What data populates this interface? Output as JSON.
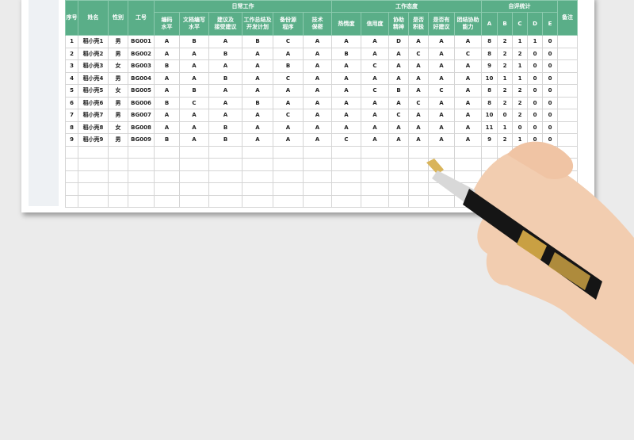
{
  "table": {
    "headers": {
      "index": "序号",
      "name": "姓名",
      "gender": "性别",
      "id": "工号",
      "group_daily": "日常工作",
      "group_attitude": "工作态度",
      "group_self": "自评统计",
      "remark": "备注",
      "daily": [
        "编码\n水平",
        "文档编写\n水平",
        "建议及\n接受建议",
        "工作总结及\n开发计划",
        "备份源\n程序",
        "技术\n保密"
      ],
      "attitude": [
        "热情度",
        "信用度",
        "协助\n精神",
        "是否\n积极",
        "是否有\n好建议",
        "团结协助\n能力"
      ],
      "self": [
        "A",
        "B",
        "C",
        "D",
        "E"
      ]
    },
    "rows": [
      [
        "1",
        "稻小壳1",
        "男",
        "BG001",
        "A",
        "B",
        "A",
        "B",
        "C",
        "A",
        "A",
        "A",
        "D",
        "A",
        "A",
        "A",
        "8",
        "2",
        "1",
        "1",
        "0",
        ""
      ],
      [
        "2",
        "稻小壳2",
        "男",
        "BG002",
        "A",
        "A",
        "B",
        "A",
        "A",
        "A",
        "B",
        "A",
        "A",
        "C",
        "A",
        "C",
        "8",
        "2",
        "2",
        "0",
        "0",
        ""
      ],
      [
        "3",
        "稻小壳3",
        "女",
        "BG003",
        "B",
        "A",
        "A",
        "A",
        "B",
        "A",
        "A",
        "C",
        "A",
        "A",
        "A",
        "A",
        "9",
        "2",
        "1",
        "0",
        "0",
        ""
      ],
      [
        "4",
        "稻小壳4",
        "男",
        "BG004",
        "A",
        "A",
        "B",
        "A",
        "C",
        "A",
        "A",
        "A",
        "A",
        "A",
        "A",
        "A",
        "10",
        "1",
        "1",
        "0",
        "0",
        ""
      ],
      [
        "5",
        "稻小壳5",
        "女",
        "BG005",
        "A",
        "B",
        "A",
        "A",
        "A",
        "A",
        "A",
        "C",
        "B",
        "A",
        "C",
        "A",
        "8",
        "2",
        "2",
        "0",
        "0",
        ""
      ],
      [
        "6",
        "稻小壳6",
        "男",
        "BG006",
        "B",
        "C",
        "A",
        "B",
        "A",
        "A",
        "A",
        "A",
        "A",
        "C",
        "A",
        "A",
        "8",
        "2",
        "2",
        "0",
        "0",
        ""
      ],
      [
        "7",
        "稻小壳7",
        "男",
        "BG007",
        "A",
        "A",
        "A",
        "A",
        "C",
        "A",
        "A",
        "A",
        "C",
        "A",
        "A",
        "A",
        "10",
        "0",
        "2",
        "0",
        "0",
        ""
      ],
      [
        "8",
        "稻小壳8",
        "女",
        "BG008",
        "A",
        "A",
        "B",
        "A",
        "A",
        "A",
        "A",
        "A",
        "A",
        "A",
        "A",
        "A",
        "11",
        "1",
        "0",
        "0",
        "0",
        ""
      ],
      [
        "9",
        "稻小壳9",
        "男",
        "BG009",
        "B",
        "A",
        "B",
        "A",
        "A",
        "A",
        "C",
        "A",
        "A",
        "A",
        "A",
        "A",
        "9",
        "2",
        "1",
        "0",
        "0",
        ""
      ]
    ],
    "empty_rows": 5
  },
  "colors": {
    "header": "#5aae88",
    "background": "#ebebeb"
  },
  "decor": {
    "image": "hand-holding-fountain-pen"
  }
}
